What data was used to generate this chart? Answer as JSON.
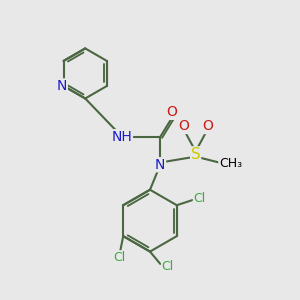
{
  "bg_color": "#e8e8e8",
  "bond_color": "#4a6741",
  "bond_width": 1.5,
  "atom_colors": {
    "N": "#1a1acc",
    "O": "#cc1a1a",
    "S": "#cccc00",
    "Cl": "#3aaa3a",
    "H": "#888888",
    "C": "#000000"
  },
  "font_size": 9,
  "fig_size": [
    3.0,
    3.0
  ],
  "dpi": 100
}
